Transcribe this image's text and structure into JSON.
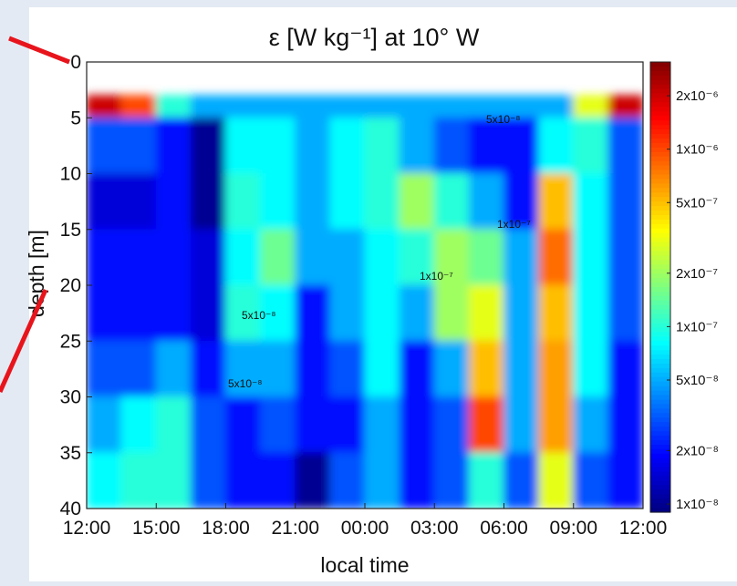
{
  "chart_data": {
    "type": "heatmap",
    "title": "ε [W kg⁻¹] at 10° W",
    "x_label": "local time",
    "y_label": "depth [m]",
    "xlim": [
      0,
      24
    ],
    "xticks": [
      {
        "value": 0,
        "label": "12:00"
      },
      {
        "value": 3,
        "label": "15:00"
      },
      {
        "value": 6,
        "label": "18:00"
      },
      {
        "value": 9,
        "label": "21:00"
      },
      {
        "value": 12,
        "label": "00:00"
      },
      {
        "value": 15,
        "label": "03:00"
      },
      {
        "value": 18,
        "label": "06:00"
      },
      {
        "value": 21,
        "label": "09:00"
      },
      {
        "value": 24,
        "label": "12:00"
      }
    ],
    "ylim": [
      40,
      0
    ],
    "yticks": [
      0,
      5,
      10,
      15,
      20,
      25,
      30,
      35,
      40
    ],
    "x_edges": [
      0,
      1.5,
      3,
      4.5,
      6,
      7.5,
      9,
      10.5,
      12,
      13.5,
      15,
      16.5,
      18,
      19.5,
      21,
      22.5,
      24
    ],
    "y_edges": [
      3,
      5,
      10,
      15,
      20,
      25,
      30,
      35,
      40
    ],
    "z": [
      [
        2e-06,
        1e-06,
        1e-07,
        5e-08,
        5e-08,
        5e-08,
        5e-08,
        5e-08,
        5e-08,
        5e-08,
        5e-08,
        5e-08,
        5e-08,
        5e-08,
        3e-07,
        2e-06
      ],
      [
        3e-08,
        3e-08,
        2e-08,
        1e-08,
        8e-08,
        8e-08,
        5e-08,
        8e-08,
        1e-07,
        5e-08,
        3e-08,
        2e-08,
        2e-08,
        8e-08,
        1e-07,
        3e-08
      ],
      [
        1.5e-08,
        1.5e-08,
        2e-08,
        1e-08,
        1e-07,
        8e-08,
        5e-08,
        8e-08,
        1e-07,
        2e-07,
        1e-07,
        5e-08,
        2e-08,
        5e-07,
        8e-08,
        3e-08
      ],
      [
        2e-08,
        2e-08,
        2e-08,
        1.5e-08,
        8e-08,
        1.5e-07,
        5e-08,
        5e-08,
        8e-08,
        1e-07,
        2e-07,
        1.5e-07,
        5e-08,
        8e-07,
        8e-08,
        3e-08
      ],
      [
        2e-08,
        2e-08,
        2e-08,
        1.5e-08,
        1e-07,
        8e-08,
        2e-08,
        5e-08,
        8e-08,
        5e-08,
        2e-07,
        3e-07,
        5e-08,
        5e-07,
        8e-08,
        3e-08
      ],
      [
        3e-08,
        3e-08,
        5e-08,
        2e-08,
        5e-08,
        5e-08,
        2e-08,
        3e-08,
        8e-08,
        2e-08,
        5e-08,
        5e-07,
        5e-08,
        6e-07,
        8e-08,
        2e-08
      ],
      [
        5e-08,
        8e-08,
        1e-07,
        3e-08,
        2e-08,
        3e-08,
        2e-08,
        2e-08,
        5e-08,
        2e-08,
        3e-08,
        1e-06,
        5e-08,
        6e-07,
        5e-08,
        2e-08
      ],
      [
        8e-08,
        1e-07,
        1e-07,
        3e-08,
        2e-08,
        2e-08,
        1e-08,
        3e-08,
        5e-08,
        2e-08,
        3e-08,
        1e-07,
        3e-08,
        3e-07,
        3e-08,
        2e-08
      ]
    ],
    "colormap": "jet",
    "color_scale": "log",
    "clim": [
      9e-09,
      3.1e-06
    ],
    "cticks": [
      {
        "value": 1e-08,
        "label": "1x10⁻⁸"
      },
      {
        "value": 2e-08,
        "label": "2x10⁻⁸"
      },
      {
        "value": 5e-08,
        "label": "5x10⁻⁸"
      },
      {
        "value": 1e-07,
        "label": "1x10⁻⁷"
      },
      {
        "value": 2e-07,
        "label": "2x10⁻⁷"
      },
      {
        "value": 5e-07,
        "label": "5x10⁻⁷"
      },
      {
        "value": 1e-06,
        "label": "1x10⁻⁶"
      },
      {
        "value": 2e-06,
        "label": "2x10⁻⁶"
      }
    ],
    "annotations": [
      "5x10⁻⁸",
      "1x10⁻⁷",
      "1x10⁻⁷",
      "5x10⁻⁸",
      "5x10⁻⁸"
    ]
  }
}
